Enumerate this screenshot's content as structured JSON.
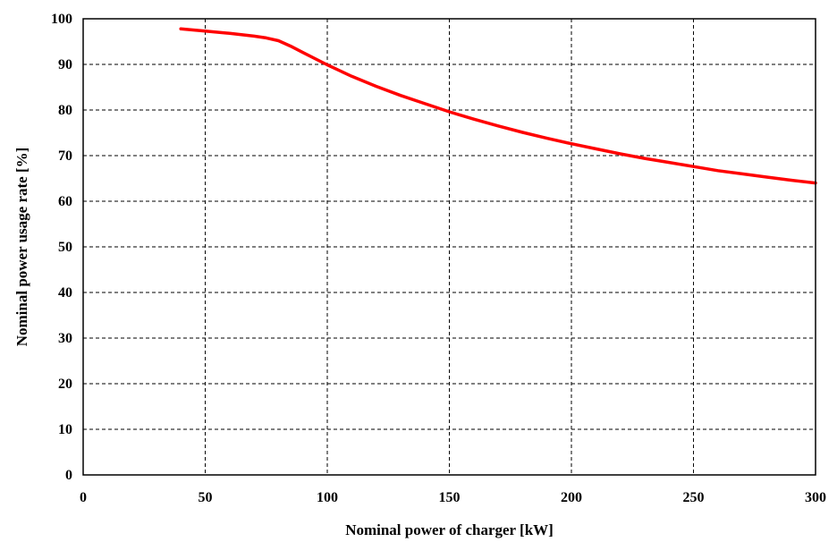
{
  "chart_data": {
    "type": "line",
    "title": "",
    "xlabel": "Nominal power of charger [kW]",
    "ylabel": "Nominal power usage rate [%]",
    "xlim": [
      0,
      300
    ],
    "ylim": [
      0,
      100
    ],
    "xticks": [
      0,
      50,
      100,
      150,
      200,
      250,
      300
    ],
    "yticks": [
      0,
      10,
      20,
      30,
      40,
      50,
      60,
      70,
      80,
      90,
      100
    ],
    "grid": true,
    "grid_style": "dashed",
    "series": [
      {
        "color": "#ff0000",
        "x": [
          40,
          50,
          60,
          70,
          75,
          80,
          85,
          90,
          100,
          110,
          120,
          130,
          140,
          150,
          160,
          170,
          180,
          190,
          200,
          210,
          220,
          230,
          240,
          250,
          260,
          270,
          280,
          290,
          300
        ],
        "y": [
          97.8,
          97.3,
          96.8,
          96.2,
          95.8,
          95.2,
          94.0,
          92.6,
          89.9,
          87.4,
          85.2,
          83.2,
          81.4,
          79.6,
          78.0,
          76.5,
          75.1,
          73.8,
          72.6,
          71.5,
          70.4,
          69.4,
          68.5,
          67.6,
          66.7,
          66.0,
          65.3,
          64.6,
          64.0
        ]
      }
    ]
  }
}
